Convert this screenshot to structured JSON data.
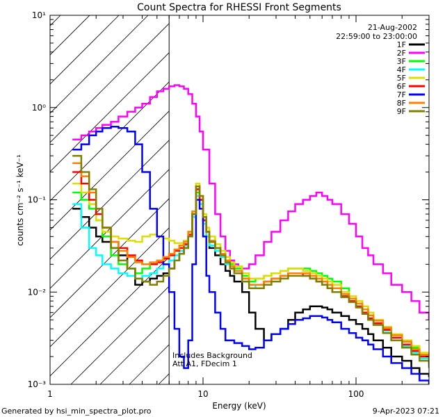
{
  "chart_data": {
    "type": "line",
    "title": "Count Spectra for RHESSI Front Segments",
    "xlabel": "Energy (keV)",
    "ylabel": "counts cm⁻² s⁻¹ keV⁻¹",
    "xscale": "log",
    "yscale": "log",
    "xlim": [
      1,
      300
    ],
    "ylim": [
      0.001,
      10
    ],
    "x_ticks": [
      {
        "value": 1,
        "label": "1"
      },
      {
        "value": 10,
        "label": "10"
      },
      {
        "value": 100,
        "label": "100"
      }
    ],
    "y_ticks": [
      {
        "value": 0.001,
        "label": "10⁻³"
      },
      {
        "value": 0.01,
        "label": "10⁻²"
      },
      {
        "value": 0.1,
        "label": "10⁻¹"
      },
      {
        "value": 1,
        "label": "10⁰"
      },
      {
        "value": 10,
        "label": "10¹"
      }
    ],
    "date": "21-Aug-2002",
    "time_range": "22:59:00 to 23:00:00",
    "annotation_lines": [
      "Includes Background",
      "Att A1, FDecim 1"
    ],
    "hatched_region": {
      "x_from": 1,
      "x_to": 6
    },
    "series": [
      {
        "name": "1F",
        "color": "#000000",
        "x": [
          1.4,
          1.6,
          1.8,
          2,
          2.2,
          2.5,
          2.8,
          3.2,
          3.6,
          4,
          4.5,
          5,
          5.5,
          6,
          6.5,
          7,
          7.5,
          8,
          8.5,
          9,
          9.5,
          10,
          10.5,
          11,
          12,
          13,
          14,
          15,
          16,
          18,
          20,
          22,
          25,
          28,
          32,
          36,
          40,
          45,
          50,
          55,
          60,
          65,
          70,
          80,
          90,
          100,
          110,
          120,
          130,
          150,
          170,
          200,
          230,
          260,
          300
        ],
        "y": [
          0.08,
          0.065,
          0.05,
          0.04,
          0.035,
          0.03,
          0.025,
          0.018,
          0.012,
          0.013,
          0.014,
          0.015,
          0.016,
          0.018,
          0.022,
          0.026,
          0.03,
          0.04,
          0.07,
          0.13,
          0.1,
          0.06,
          0.04,
          0.03,
          0.025,
          0.02,
          0.017,
          0.015,
          0.013,
          0.01,
          0.006,
          0.004,
          0.003,
          0.0035,
          0.004,
          0.005,
          0.006,
          0.0065,
          0.007,
          0.007,
          0.0068,
          0.0065,
          0.006,
          0.0055,
          0.005,
          0.0045,
          0.004,
          0.0035,
          0.003,
          0.0025,
          0.002,
          0.0018,
          0.0015,
          0.0013,
          0.0012
        ]
      },
      {
        "name": "2F",
        "color": "#ff00ff",
        "x": [
          1.4,
          1.6,
          1.8,
          2,
          2.2,
          2.5,
          2.8,
          3.2,
          3.6,
          4,
          4.5,
          5,
          5.5,
          6,
          6.5,
          7,
          7.5,
          8,
          8.5,
          9,
          9.5,
          10,
          11,
          12,
          13,
          14,
          15,
          16,
          17,
          18,
          20,
          22,
          25,
          28,
          32,
          36,
          40,
          45,
          50,
          55,
          60,
          65,
          70,
          80,
          90,
          100,
          110,
          120,
          130,
          150,
          170,
          200,
          230,
          260,
          300
        ],
        "y": [
          0.45,
          0.5,
          0.55,
          0.6,
          0.65,
          0.7,
          0.8,
          0.9,
          1,
          1.1,
          1.3,
          1.5,
          1.6,
          1.7,
          1.75,
          1.7,
          1.6,
          1.4,
          1.1,
          0.8,
          0.55,
          0.35,
          0.15,
          0.07,
          0.04,
          0.028,
          0.022,
          0.02,
          0.019,
          0.018,
          0.02,
          0.025,
          0.035,
          0.045,
          0.06,
          0.075,
          0.09,
          0.1,
          0.11,
          0.12,
          0.11,
          0.1,
          0.09,
          0.07,
          0.055,
          0.04,
          0.03,
          0.025,
          0.02,
          0.016,
          0.012,
          0.01,
          0.008,
          0.006,
          0.005
        ]
      },
      {
        "name": "3F",
        "color": "#00ff00",
        "x": [
          1.4,
          1.6,
          1.8,
          2,
          2.2,
          2.5,
          2.8,
          3.2,
          3.6,
          4,
          4.5,
          5,
          5.5,
          6,
          6.5,
          7,
          7.5,
          8,
          8.5,
          9,
          9.5,
          10,
          10.5,
          11,
          12,
          13,
          14,
          15,
          16,
          18,
          20,
          22,
          25,
          28,
          32,
          36,
          40,
          45,
          50,
          55,
          60,
          65,
          70,
          80,
          90,
          100,
          110,
          120,
          130,
          150,
          170,
          200,
          230,
          260,
          300
        ],
        "y": [
          0.12,
          0.1,
          0.08,
          0.06,
          0.04,
          0.025,
          0.02,
          0.018,
          0.016,
          0.018,
          0.02,
          0.022,
          0.024,
          0.026,
          0.028,
          0.032,
          0.036,
          0.045,
          0.07,
          0.12,
          0.1,
          0.06,
          0.045,
          0.035,
          0.03,
          0.026,
          0.022,
          0.02,
          0.018,
          0.015,
          0.013,
          0.014,
          0.015,
          0.016,
          0.017,
          0.018,
          0.018,
          0.018,
          0.017,
          0.016,
          0.015,
          0.014,
          0.013,
          0.011,
          0.009,
          0.008,
          0.007,
          0.006,
          0.005,
          0.004,
          0.0035,
          0.003,
          0.0025,
          0.002,
          0.0018
        ]
      },
      {
        "name": "4F",
        "color": "#00ffff",
        "x": [
          1.4,
          1.6,
          1.8,
          2,
          2.2,
          2.5,
          2.8,
          3.2,
          3.6,
          4,
          4.5,
          5,
          5.5,
          6,
          6.5,
          7,
          7.5,
          8,
          8.5,
          9,
          9.5,
          10,
          10.5,
          11,
          12,
          13,
          14,
          15,
          16,
          18,
          20,
          22,
          25,
          28,
          32,
          36,
          40,
          45,
          50,
          55,
          60,
          65,
          70,
          80,
          90,
          100,
          110,
          120,
          130,
          150,
          170,
          200,
          230,
          260,
          300
        ],
        "y": [
          0.09,
          0.05,
          0.03,
          0.025,
          0.02,
          0.018,
          0.016,
          0.015,
          0.014,
          0.015,
          0.016,
          0.018,
          0.02,
          0.022,
          0.025,
          0.028,
          0.032,
          0.04,
          0.065,
          0.11,
          0.09,
          0.055,
          0.04,
          0.032,
          0.028,
          0.024,
          0.02,
          0.018,
          0.016,
          0.013,
          0.011,
          0.012,
          0.013,
          0.014,
          0.015,
          0.016,
          0.016,
          0.016,
          0.015,
          0.014,
          0.013,
          0.012,
          0.011,
          0.009,
          0.008,
          0.007,
          0.006,
          0.005,
          0.0045,
          0.0038,
          0.003,
          0.0026,
          0.0022,
          0.0019,
          0.0016
        ]
      },
      {
        "name": "5F",
        "color": "#dddd00",
        "x": [
          1.4,
          1.6,
          1.8,
          2,
          2.2,
          2.5,
          2.8,
          3.2,
          3.6,
          4,
          4.5,
          5,
          5.5,
          6,
          6.5,
          7,
          7.5,
          8,
          8.5,
          9,
          9.5,
          10,
          10.5,
          11,
          12,
          13,
          14,
          15,
          16,
          18,
          20,
          22,
          25,
          28,
          32,
          36,
          40,
          45,
          50,
          55,
          60,
          65,
          70,
          80,
          90,
          100,
          110,
          120,
          130,
          150,
          170,
          200,
          230,
          260,
          300
        ],
        "y": [
          0.15,
          0.12,
          0.09,
          0.06,
          0.045,
          0.04,
          0.038,
          0.036,
          0.035,
          0.04,
          0.042,
          0.04,
          0.038,
          0.036,
          0.034,
          0.034,
          0.036,
          0.045,
          0.075,
          0.15,
          0.11,
          0.07,
          0.05,
          0.04,
          0.033,
          0.028,
          0.024,
          0.021,
          0.019,
          0.016,
          0.014,
          0.014,
          0.015,
          0.016,
          0.017,
          0.018,
          0.018,
          0.017,
          0.016,
          0.015,
          0.014,
          0.013,
          0.012,
          0.01,
          0.009,
          0.008,
          0.007,
          0.006,
          0.005,
          0.0042,
          0.0035,
          0.003,
          0.0026,
          0.0022,
          0.0019
        ]
      },
      {
        "name": "6F",
        "color": "#ff0000",
        "x": [
          1.4,
          1.6,
          1.8,
          2,
          2.2,
          2.5,
          2.8,
          3.2,
          3.6,
          4,
          4.5,
          5,
          5.5,
          6,
          6.5,
          7,
          7.5,
          8,
          8.5,
          9,
          9.5,
          10,
          10.5,
          11,
          12,
          13,
          14,
          15,
          16,
          18,
          20,
          22,
          25,
          28,
          32,
          36,
          40,
          45,
          50,
          55,
          60,
          65,
          70,
          80,
          90,
          100,
          110,
          120,
          130,
          150,
          170,
          200,
          230,
          260,
          300
        ],
        "y": [
          0.2,
          0.15,
          0.1,
          0.07,
          0.05,
          0.035,
          0.03,
          0.025,
          0.022,
          0.02,
          0.02,
          0.021,
          0.023,
          0.025,
          0.028,
          0.03,
          0.033,
          0.042,
          0.07,
          0.13,
          0.1,
          0.06,
          0.045,
          0.035,
          0.03,
          0.025,
          0.021,
          0.019,
          0.017,
          0.014,
          0.012,
          0.012,
          0.013,
          0.014,
          0.015,
          0.016,
          0.016,
          0.015,
          0.014,
          0.013,
          0.012,
          0.011,
          0.01,
          0.009,
          0.008,
          0.007,
          0.006,
          0.0052,
          0.0046,
          0.0039,
          0.0032,
          0.0027,
          0.0023,
          0.002,
          0.0017
        ]
      },
      {
        "name": "7F",
        "color": "#0000ff",
        "x": [
          1.4,
          1.6,
          1.8,
          2,
          2.2,
          2.5,
          2.8,
          3.2,
          3.6,
          4,
          4.5,
          5,
          5.5,
          6,
          6.5,
          7,
          7.5,
          8,
          8.5,
          9,
          9.5,
          10,
          10.5,
          11,
          12,
          13,
          14,
          15,
          16,
          18,
          20,
          22,
          25,
          28,
          32,
          36,
          40,
          45,
          50,
          55,
          60,
          65,
          70,
          80,
          90,
          100,
          110,
          120,
          130,
          150,
          170,
          200,
          230,
          260,
          300
        ],
        "y": [
          0.35,
          0.4,
          0.5,
          0.55,
          0.6,
          0.62,
          0.6,
          0.55,
          0.4,
          0.2,
          0.08,
          0.04,
          0.02,
          0.01,
          0.004,
          0.002,
          0.0015,
          0.003,
          0.02,
          0.1,
          0.08,
          0.04,
          0.015,
          0.01,
          0.006,
          0.004,
          0.003,
          0.003,
          0.0028,
          0.0026,
          0.0024,
          0.0025,
          0.003,
          0.0035,
          0.004,
          0.0045,
          0.005,
          0.0052,
          0.0055,
          0.0055,
          0.0053,
          0.005,
          0.0047,
          0.004,
          0.0036,
          0.0032,
          0.003,
          0.0027,
          0.0024,
          0.002,
          0.0017,
          0.0015,
          0.0013,
          0.0011,
          0.001
        ]
      },
      {
        "name": "8F",
        "color": "#ff8000",
        "x": [
          1.4,
          1.6,
          1.8,
          2,
          2.2,
          2.5,
          2.8,
          3.2,
          3.6,
          4,
          4.5,
          5,
          5.5,
          6,
          6.5,
          7,
          7.5,
          8,
          8.5,
          9,
          9.5,
          10,
          10.5,
          11,
          12,
          13,
          14,
          15,
          16,
          18,
          20,
          22,
          25,
          28,
          32,
          36,
          40,
          45,
          50,
          55,
          60,
          65,
          70,
          80,
          90,
          100,
          110,
          120,
          130,
          150,
          170,
          200,
          230,
          260,
          300
        ],
        "y": [
          0.25,
          0.18,
          0.12,
          0.08,
          0.05,
          0.035,
          0.028,
          0.024,
          0.021,
          0.02,
          0.021,
          0.022,
          0.024,
          0.026,
          0.029,
          0.032,
          0.035,
          0.045,
          0.075,
          0.14,
          0.11,
          0.065,
          0.045,
          0.036,
          0.03,
          0.026,
          0.022,
          0.019,
          0.017,
          0.014,
          0.012,
          0.012,
          0.013,
          0.014,
          0.015,
          0.016,
          0.016,
          0.016,
          0.015,
          0.014,
          0.013,
          0.012,
          0.011,
          0.0095,
          0.0085,
          0.0075,
          0.0065,
          0.0056,
          0.0049,
          0.0041,
          0.0034,
          0.0029,
          0.0024,
          0.0021,
          0.0018
        ]
      },
      {
        "name": "9F",
        "color": "#808000",
        "x": [
          1.4,
          1.6,
          1.8,
          2,
          2.2,
          2.5,
          2.8,
          3.2,
          3.6,
          4,
          4.5,
          5,
          5.5,
          6,
          6.5,
          7,
          7.5,
          8,
          8.5,
          9,
          9.5,
          10,
          10.5,
          11,
          12,
          13,
          14,
          15,
          16,
          18,
          20,
          22,
          25,
          28,
          32,
          36,
          40,
          45,
          50,
          55,
          60,
          65,
          70,
          80,
          90,
          100,
          110,
          120,
          130,
          150,
          170,
          200,
          230,
          260,
          300
        ],
        "y": [
          0.3,
          0.2,
          0.13,
          0.08,
          0.05,
          0.03,
          0.022,
          0.018,
          0.014,
          0.013,
          0.012,
          0.013,
          0.015,
          0.018,
          0.022,
          0.026,
          0.03,
          0.04,
          0.07,
          0.14,
          0.11,
          0.065,
          0.045,
          0.035,
          0.03,
          0.025,
          0.021,
          0.018,
          0.016,
          0.013,
          0.011,
          0.011,
          0.012,
          0.013,
          0.014,
          0.015,
          0.015,
          0.015,
          0.014,
          0.013,
          0.012,
          0.011,
          0.01,
          0.0088,
          0.0078,
          0.0068,
          0.0058,
          0.005,
          0.0044,
          0.0036,
          0.003,
          0.0025,
          0.0021,
          0.0018,
          0.0015
        ]
      }
    ]
  },
  "footer": {
    "generated_by": "Generated by hsi_min_spectra_plot.pro",
    "timestamp": "9-Apr-2023 07:21"
  }
}
